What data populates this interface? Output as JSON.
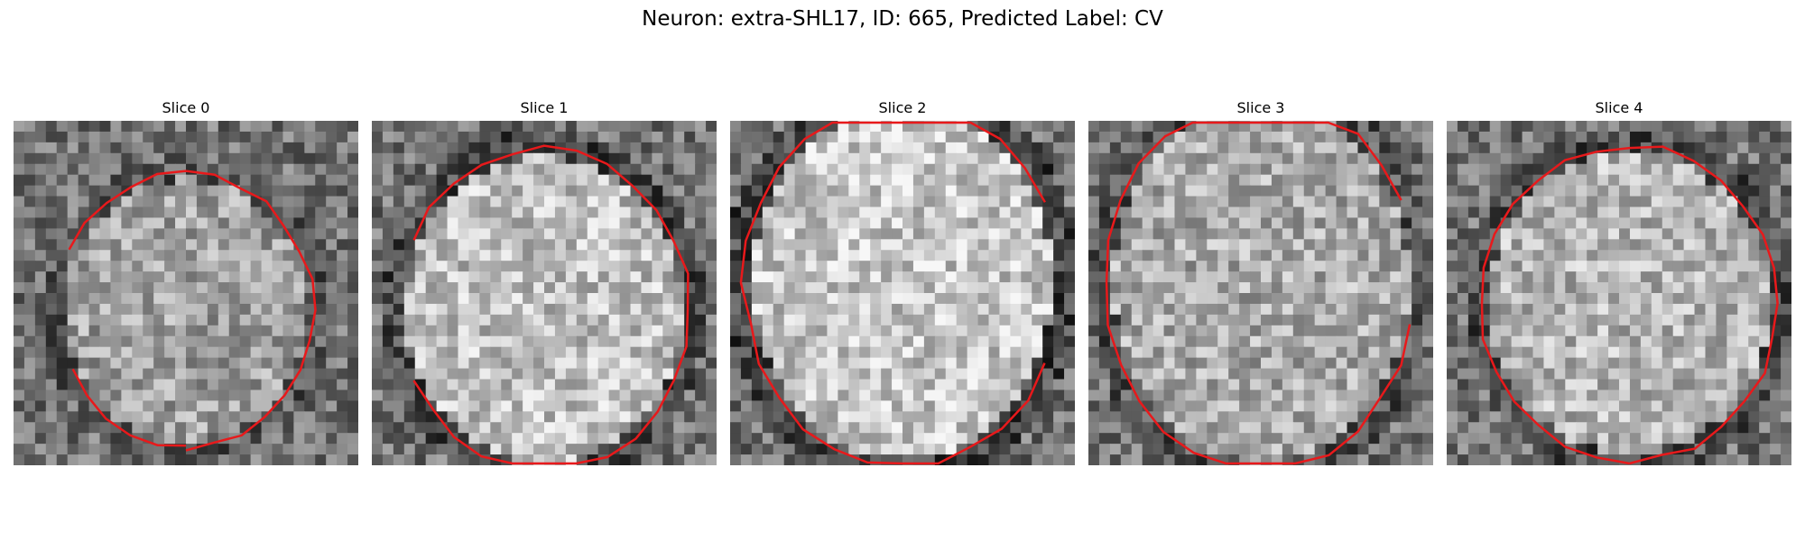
{
  "figure": {
    "title": "Neuron: extra-SHL17, ID: 665, Predicted Label: CV"
  },
  "panels": [
    {
      "title": "Slice 0",
      "seed": 11,
      "contrast": 0.18,
      "contour_open": true
    },
    {
      "title": "Slice 1",
      "seed": 23,
      "contrast": 0.3,
      "contour_open": true
    },
    {
      "title": "Slice 2",
      "seed": 37,
      "contrast": 0.33,
      "contour_open": true
    },
    {
      "title": "Slice 3",
      "seed": 41,
      "contrast": 0.22,
      "contour_open": true
    },
    {
      "title": "Slice 4",
      "seed": 53,
      "contrast": 0.26,
      "contour_open": false
    }
  ],
  "colors": {
    "contour": "#e8191b"
  }
}
